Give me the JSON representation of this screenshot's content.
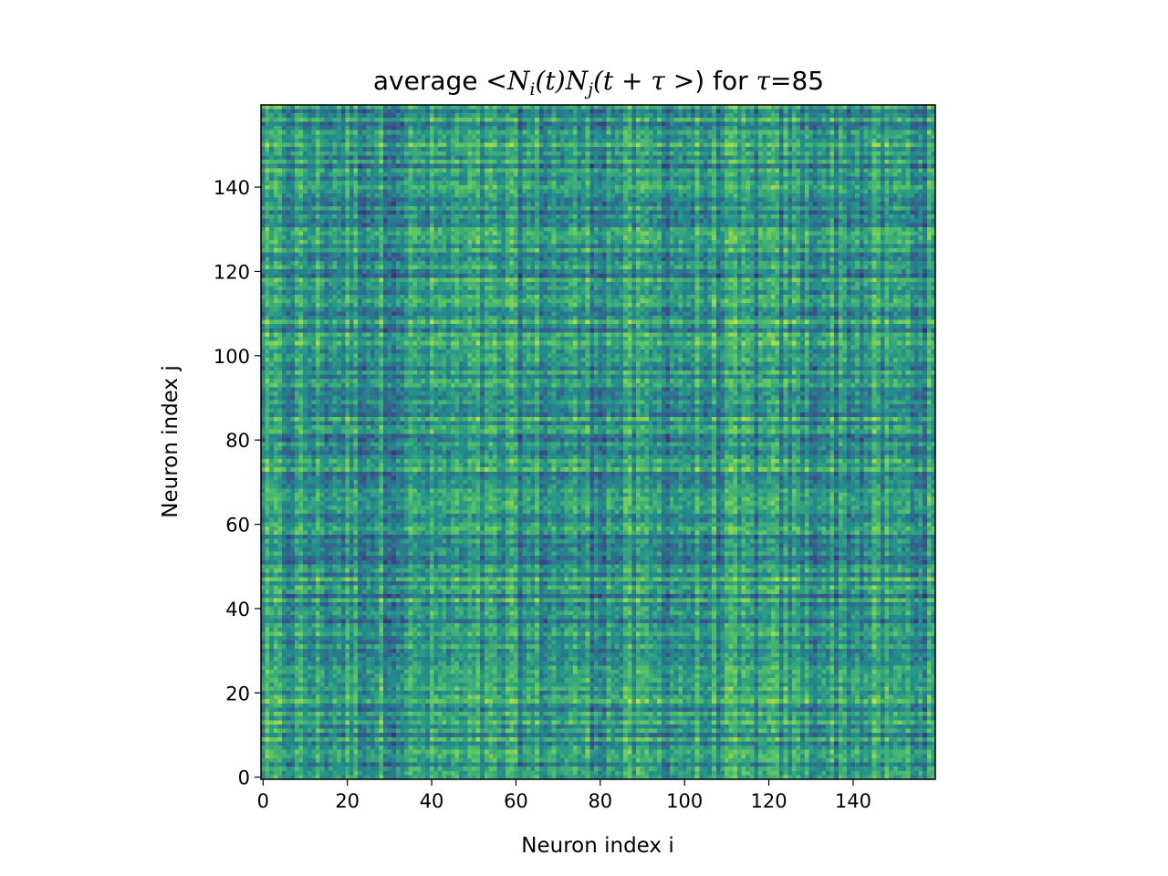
{
  "chart_data": {
    "type": "heatmap",
    "title": {
      "prefix": "average ",
      "math_lt": "<",
      "N1": "N",
      "sub_i": "i",
      "t1": "(t)",
      "N2": "N",
      "sub_j": "j",
      "t2": "(t + τ >",
      "close": ")",
      "suffix": " for ",
      "tau": "τ",
      "eq": "=85"
    },
    "xlabel": "Neuron index i",
    "ylabel": "Neuron index j",
    "x_range": [
      0,
      160
    ],
    "y_range": [
      0,
      160
    ],
    "grid_size": 160,
    "x_ticks": [
      0,
      20,
      40,
      60,
      80,
      100,
      120,
      140
    ],
    "y_ticks": [
      0,
      20,
      40,
      60,
      80,
      100,
      120,
      140
    ],
    "origin": "lower",
    "colormap": "viridis",
    "grid": false,
    "colors": {
      "low": "#440154",
      "mid": "#21918c",
      "high": "#fde725"
    }
  }
}
